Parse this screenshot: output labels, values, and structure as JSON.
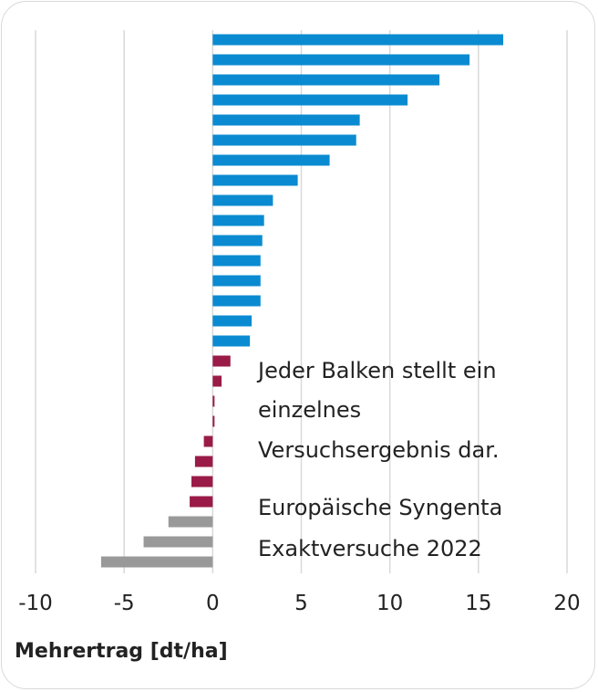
{
  "chart_data": {
    "type": "bar",
    "orientation": "horizontal",
    "xlabel": "Mehrertrag [dt/ha]",
    "xlim": [
      -10,
      20
    ],
    "xticks": [
      -10,
      -5,
      0,
      5,
      10,
      15,
      20
    ],
    "grid": true,
    "values": [
      16.4,
      14.5,
      12.8,
      11.0,
      8.3,
      8.1,
      6.6,
      4.8,
      3.4,
      2.9,
      2.8,
      2.7,
      2.7,
      2.7,
      2.2,
      2.1,
      1.0,
      0.5,
      0.1,
      0.1,
      -0.5,
      -1.0,
      -1.2,
      -1.3,
      -2.5,
      -3.9,
      -6.3
    ],
    "colors": {
      "positive_high": "#0a8bd1",
      "positive_low": "#9a1b47",
      "negative": "#999999",
      "grid": "#d9d9d9"
    },
    "annotations": [
      "Jeder Balken stellt ein",
      "einzelnes",
      "Versuchsergebnis dar.",
      "Europäische Syngenta",
      "Exaktversuche 2022"
    ]
  }
}
